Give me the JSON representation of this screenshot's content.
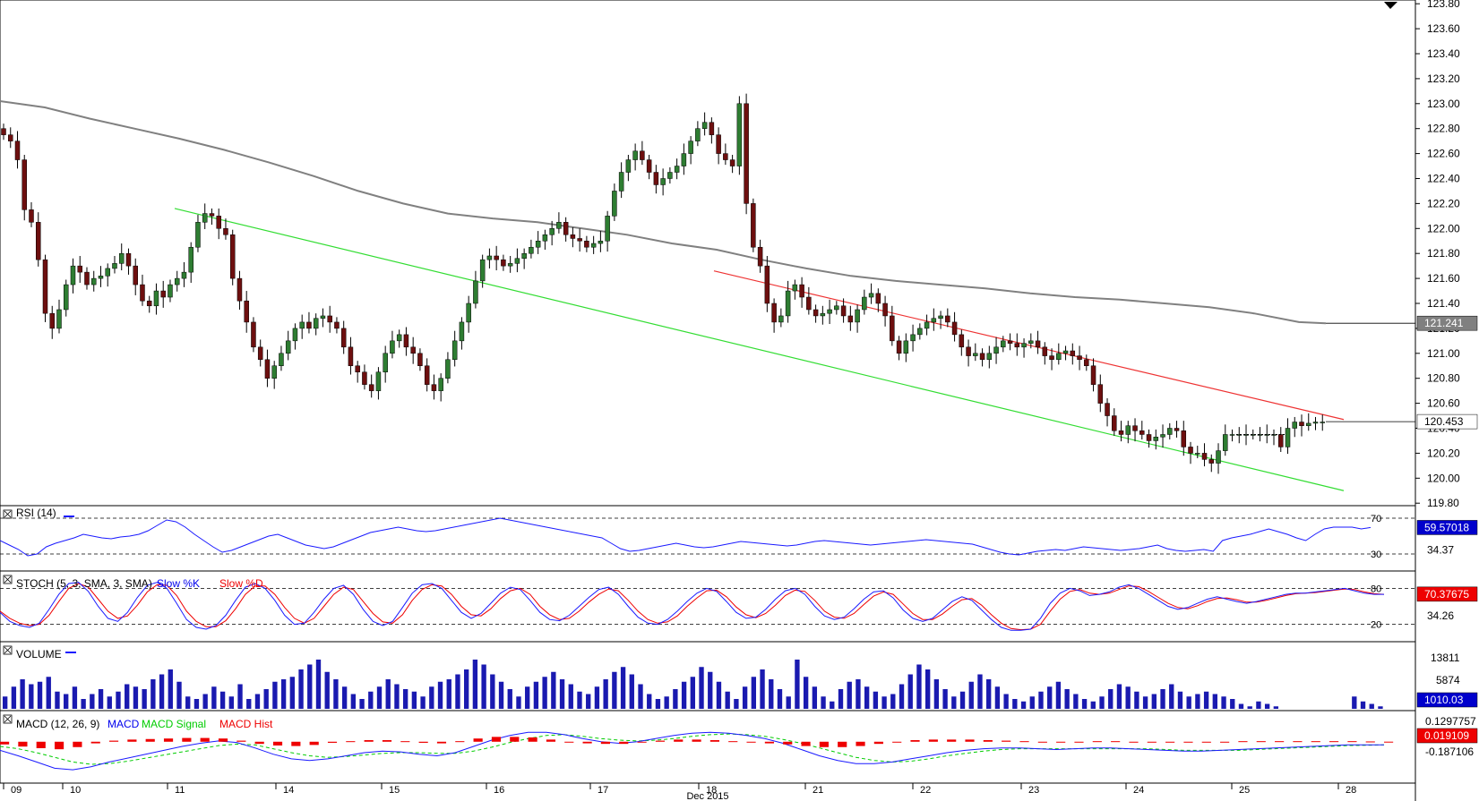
{
  "chart_data": {
    "type": "candlestick",
    "x_label": "Dec 2015",
    "date_ticks": [
      "09",
      "10",
      "11",
      "14",
      "15",
      "16",
      "17",
      "18",
      "21",
      "22",
      "23",
      "24",
      "25",
      "28"
    ],
    "price_panel": {
      "y_ticks": [
        "123.80",
        "123.60",
        "123.40",
        "123.20",
        "123.00",
        "122.80",
        "122.60",
        "122.40",
        "122.20",
        "122.00",
        "121.80",
        "121.60",
        "121.40",
        "121.20",
        "121.00",
        "120.80",
        "120.60",
        "120.40",
        "120.20",
        "120.00",
        "119.80"
      ],
      "ylim": [
        119.78,
        123.83
      ],
      "current_price_label": "120.453",
      "current_price": 120.453,
      "ma_label": "121.241",
      "ma_value": 121.241,
      "ma_path": [
        [
          0,
          123.02
        ],
        [
          50,
          122.97
        ],
        [
          100,
          122.88
        ],
        [
          150,
          122.8
        ],
        [
          200,
          122.72
        ],
        [
          250,
          122.63
        ],
        [
          300,
          122.53
        ],
        [
          350,
          122.42
        ],
        [
          400,
          122.3
        ],
        [
          450,
          122.2
        ],
        [
          500,
          122.12
        ],
        [
          550,
          122.08
        ],
        [
          600,
          122.05
        ],
        [
          650,
          122.0
        ],
        [
          700,
          121.95
        ],
        [
          750,
          121.88
        ],
        [
          800,
          121.83
        ],
        [
          850,
          121.75
        ],
        [
          900,
          121.68
        ],
        [
          950,
          121.62
        ],
        [
          1000,
          121.58
        ],
        [
          1050,
          121.55
        ],
        [
          1100,
          121.52
        ],
        [
          1150,
          121.48
        ],
        [
          1200,
          121.45
        ],
        [
          1250,
          121.43
        ],
        [
          1300,
          121.4
        ],
        [
          1350,
          121.37
        ],
        [
          1400,
          121.32
        ],
        [
          1450,
          121.25
        ],
        [
          1480,
          121.24
        ]
      ],
      "trend_lines": [
        {
          "color": "#33dd33",
          "from": [
            195,
            122.16
          ],
          "to": [
            1500,
            119.9
          ]
        },
        {
          "color": "#ee3333",
          "from": [
            797,
            121.66
          ],
          "to": [
            1500,
            120.47
          ]
        }
      ],
      "closes": [
        122.75,
        122.7,
        122.55,
        122.15,
        122.05,
        121.75,
        121.32,
        121.2,
        121.35,
        121.55,
        121.7,
        121.65,
        121.55,
        121.6,
        121.62,
        121.68,
        121.72,
        121.8,
        121.7,
        121.55,
        121.42,
        121.38,
        121.5,
        121.45,
        121.55,
        121.6,
        121.65,
        121.85,
        122.05,
        122.12,
        122.1,
        122.0,
        121.95,
        121.6,
        121.42,
        121.25,
        121.05,
        120.95,
        120.8,
        120.9,
        121.0,
        121.1,
        121.2,
        121.25,
        121.2,
        121.28,
        121.3,
        121.25,
        121.2,
        121.05,
        120.9,
        120.85,
        120.75,
        120.7,
        120.85,
        121.0,
        121.1,
        121.15,
        121.05,
        121.0,
        120.9,
        120.75,
        120.7,
        120.8,
        120.95,
        121.1,
        121.25,
        121.4,
        121.58,
        121.75,
        121.78,
        121.75,
        121.7,
        121.72,
        121.76,
        121.8,
        121.85,
        121.9,
        121.95,
        122.0,
        122.05,
        121.95,
        121.92,
        121.9,
        121.85,
        121.88,
        121.9,
        122.1,
        122.3,
        122.45,
        122.55,
        122.62,
        122.55,
        122.45,
        122.35,
        122.4,
        122.45,
        122.5,
        122.6,
        122.7,
        122.8,
        122.85,
        122.75,
        122.6,
        122.55,
        122.5,
        123.0,
        122.2,
        121.85,
        121.7,
        121.4,
        121.25,
        121.3,
        121.5,
        121.55,
        121.45,
        121.35,
        121.3,
        121.32,
        121.35,
        121.38,
        121.3,
        121.25,
        121.35,
        121.45,
        121.48,
        121.4,
        121.3,
        121.1,
        121.0,
        121.1,
        121.15,
        121.2,
        121.25,
        121.28,
        121.3,
        121.25,
        121.15,
        121.05,
        120.98,
        121.0,
        120.95,
        121.0,
        121.05,
        121.1,
        121.08,
        121.05,
        121.08,
        121.1,
        121.05,
        120.98,
        120.95,
        121.0,
        121.02,
        120.98,
        120.95,
        120.9,
        120.75,
        120.6,
        120.5,
        120.38,
        120.35,
        120.42,
        120.38,
        120.35,
        120.3,
        120.33,
        120.35,
        120.4,
        120.38,
        120.25,
        120.2,
        120.2,
        120.15,
        120.12,
        120.22,
        120.35,
        120.35,
        120.35,
        120.35,
        120.35,
        120.35,
        120.35,
        120.35,
        120.25,
        120.4,
        120.45,
        120.42,
        120.44,
        120.45,
        120.45
      ]
    },
    "rsi_panel": {
      "title": "RSI (14)",
      "levels": [
        "70",
        "30"
      ],
      "value_label": "59.57018",
      "value": 59.57018,
      "scale_label": "34.37",
      "series": [
        45,
        40,
        35,
        28,
        30,
        38,
        42,
        45,
        48,
        52,
        50,
        48,
        47,
        49,
        50,
        52,
        56,
        62,
        68,
        66,
        60,
        52,
        45,
        38,
        32,
        34,
        38,
        42,
        46,
        50,
        52,
        48,
        44,
        40,
        38,
        36,
        38,
        42,
        46,
        50,
        54,
        56,
        58,
        60,
        58,
        56,
        55,
        56,
        58,
        60,
        62,
        64,
        66,
        68,
        70,
        68,
        66,
        64,
        62,
        60,
        58,
        56,
        54,
        52,
        50,
        48,
        42,
        36,
        33,
        34,
        36,
        38,
        40,
        42,
        40,
        38,
        37,
        38,
        40,
        42,
        44,
        43,
        42,
        41,
        40,
        39,
        40,
        42,
        44,
        45,
        44,
        43,
        42,
        41,
        40,
        41,
        42,
        43,
        44,
        45,
        46,
        45,
        44,
        43,
        42,
        41,
        38,
        35,
        32,
        30,
        29,
        31,
        33,
        34,
        35,
        34,
        36,
        38,
        37,
        36,
        35,
        34,
        35,
        36,
        38,
        40,
        36,
        34,
        33,
        34,
        35,
        33,
        45,
        48,
        50,
        52,
        55,
        58,
        55,
        52,
        48,
        45,
        52,
        58,
        60,
        60,
        60,
        58,
        59.57
      ]
    },
    "stoch_panel": {
      "title": "STOCH (5, 3, SMA, 3, SMA)",
      "legend": [
        {
          "name": "Slow %K",
          "color": "#0000ee"
        },
        {
          "name": "Slow %D",
          "color": "#ee0000"
        }
      ],
      "levels": [
        "80",
        "20"
      ],
      "value_label": "70.37675",
      "value": 70.37675,
      "scale_label": "34.26",
      "k_series": [
        40,
        25,
        18,
        15,
        22,
        45,
        70,
        88,
        90,
        75,
        50,
        30,
        25,
        40,
        65,
        85,
        90,
        80,
        55,
        28,
        15,
        12,
        18,
        35,
        60,
        82,
        88,
        80,
        60,
        35,
        20,
        22,
        40,
        62,
        80,
        85,
        70,
        45,
        25,
        18,
        25,
        48,
        72,
        86,
        88,
        80,
        60,
        40,
        30,
        38,
        55,
        72,
        82,
        78,
        60,
        40,
        28,
        26,
        35,
        50,
        65,
        78,
        82,
        70,
        50,
        32,
        22,
        20,
        28,
        42,
        58,
        72,
        80,
        75,
        58,
        40,
        30,
        32,
        45,
        62,
        76,
        80,
        70,
        50,
        34,
        28,
        32,
        46,
        62,
        74,
        76,
        64,
        44,
        30,
        25,
        30,
        44,
        58,
        66,
        60,
        44,
        28,
        15,
        10,
        10,
        12,
        30,
        55,
        72,
        80,
        76,
        68,
        70,
        74,
        82,
        86,
        80,
        70,
        60,
        50,
        45,
        48,
        55,
        62,
        66,
        62,
        58,
        55,
        58,
        62,
        66,
        70,
        72,
        72,
        74,
        76,
        78,
        80,
        76,
        72,
        70,
        70
      ],
      "d_series": [
        42,
        30,
        22,
        18,
        20,
        35,
        58,
        80,
        88,
        82,
        62,
        42,
        30,
        34,
        52,
        74,
        86,
        85,
        68,
        42,
        25,
        16,
        16,
        26,
        46,
        70,
        84,
        84,
        70,
        48,
        30,
        22,
        30,
        50,
        70,
        82,
        78,
        58,
        38,
        24,
        22,
        36,
        60,
        78,
        86,
        84,
        70,
        50,
        36,
        34,
        46,
        63,
        76,
        80,
        70,
        50,
        36,
        28,
        30,
        42,
        57,
        70,
        79,
        76,
        60,
        42,
        28,
        22,
        24,
        34,
        50,
        64,
        76,
        77,
        66,
        49,
        36,
        31,
        38,
        52,
        68,
        77,
        75,
        60,
        42,
        32,
        30,
        38,
        53,
        67,
        74,
        70,
        54,
        38,
        28,
        28,
        37,
        50,
        61,
        63,
        52,
        36,
        22,
        13,
        11,
        12,
        20,
        42,
        62,
        75,
        78,
        72,
        70,
        72,
        78,
        84,
        83,
        75,
        65,
        55,
        48,
        46,
        51,
        58,
        63,
        64,
        61,
        57,
        57,
        60,
        64,
        68,
        71,
        72,
        73,
        75,
        77,
        79,
        78,
        74,
        71,
        70
      ]
    },
    "volume_panel": {
      "title": "VOLUME",
      "ticks": [
        "13811",
        "5874"
      ],
      "value_label": "1010.03",
      "value": 1010.03,
      "bars": [
        5,
        9,
        12,
        10,
        11,
        13,
        7,
        6,
        9,
        4,
        6,
        8,
        5,
        7,
        10,
        9,
        8,
        12,
        14,
        16,
        11,
        5,
        4,
        6,
        9,
        7,
        5,
        10,
        4,
        6,
        8,
        11,
        12,
        13,
        16,
        18,
        20,
        15,
        12,
        9,
        6,
        4,
        7,
        9,
        12,
        10,
        8,
        7,
        5,
        9,
        11,
        12,
        14,
        16,
        20,
        18,
        14,
        11,
        8,
        5,
        9,
        11,
        13,
        15,
        12,
        10,
        7,
        6,
        9,
        12,
        15,
        17,
        14,
        10,
        6,
        4,
        5,
        8,
        11,
        13,
        17,
        15,
        11,
        7,
        4,
        9,
        13,
        16,
        12,
        8,
        5,
        20,
        13,
        9,
        5,
        3,
        8,
        11,
        12,
        9,
        7,
        5,
        6,
        10,
        14,
        18,
        16,
        12,
        8,
        5,
        7,
        11,
        14,
        12,
        9,
        6,
        4,
        3,
        5,
        7,
        9,
        11,
        8,
        6,
        4,
        3,
        5,
        8,
        10,
        9,
        7,
        5,
        6,
        8,
        10,
        7,
        5,
        6,
        7,
        6,
        5,
        4,
        2,
        1,
        3,
        2,
        1,
        0,
        0,
        0,
        0,
        0,
        0,
        0,
        0,
        5,
        3,
        2,
        1
      ]
    },
    "macd_panel": {
      "title": "MACD (12, 26, 9)",
      "legend": [
        {
          "name": "MACD",
          "color": "#0000ee"
        },
        {
          "name": "MACD Signal",
          "color": "#00cc00"
        },
        {
          "name": "MACD Hist",
          "color": "#ee0000"
        }
      ],
      "ticks": [
        "0.1297757",
        "-0.187106"
      ],
      "value_label": "0.019109",
      "value": 0.019109,
      "macd_series": [
        -0.05,
        -0.12,
        -0.2,
        -0.28,
        -0.3,
        -0.26,
        -0.2,
        -0.15,
        -0.1,
        -0.05,
        0.0,
        0.04,
        0.07,
        0.05,
        -0.02,
        -0.1,
        -0.16,
        -0.18,
        -0.16,
        -0.12,
        -0.08,
        -0.06,
        -0.07,
        -0.1,
        -0.12,
        -0.08,
        0.0,
        0.08,
        0.14,
        0.18,
        0.18,
        0.15,
        0.1,
        0.06,
        0.04,
        0.06,
        0.1,
        0.14,
        0.17,
        0.18,
        0.17,
        0.14,
        0.1,
        0.04,
        -0.04,
        -0.12,
        -0.18,
        -0.22,
        -0.22,
        -0.2,
        -0.16,
        -0.12,
        -0.08,
        -0.05,
        -0.03,
        -0.02,
        -0.02,
        -0.03,
        -0.04,
        -0.03,
        -0.02,
        -0.02,
        -0.03,
        -0.04,
        -0.05,
        -0.06,
        -0.06,
        -0.05,
        -0.04,
        -0.03,
        -0.02,
        -0.01,
        0.0,
        0.01,
        0.02,
        0.02,
        0.02
      ],
      "signal_series": [
        0.0,
        -0.03,
        -0.08,
        -0.14,
        -0.2,
        -0.23,
        -0.22,
        -0.19,
        -0.15,
        -0.11,
        -0.07,
        -0.03,
        0.01,
        0.03,
        0.02,
        -0.03,
        -0.08,
        -0.12,
        -0.14,
        -0.13,
        -0.11,
        -0.09,
        -0.08,
        -0.08,
        -0.09,
        -0.09,
        -0.06,
        -0.01,
        0.05,
        0.1,
        0.14,
        0.15,
        0.13,
        0.1,
        0.08,
        0.07,
        0.08,
        0.1,
        0.13,
        0.15,
        0.16,
        0.15,
        0.13,
        0.09,
        0.04,
        -0.02,
        -0.08,
        -0.14,
        -0.18,
        -0.2,
        -0.19,
        -0.16,
        -0.12,
        -0.09,
        -0.06,
        -0.04,
        -0.03,
        -0.03,
        -0.03,
        -0.03,
        -0.03,
        -0.03,
        -0.03,
        -0.03,
        -0.04,
        -0.05,
        -0.05,
        -0.05,
        -0.05,
        -0.04,
        -0.03,
        -0.02,
        -0.01,
        0.0,
        0.01,
        0.015,
        0.019
      ]
    }
  }
}
